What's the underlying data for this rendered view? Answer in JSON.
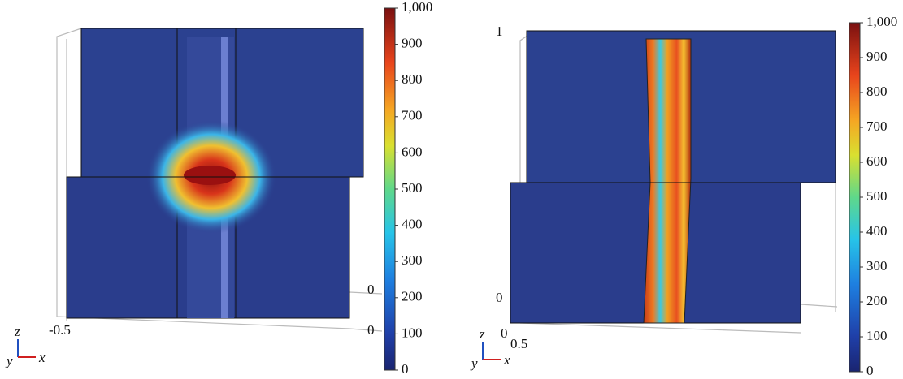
{
  "panels": [
    {
      "colorbar_ticks": [
        "0",
        "100",
        "200",
        "300",
        "400",
        "500",
        "600",
        "700",
        "800",
        "900",
        "1,000"
      ],
      "axis_labels": [
        "0",
        "0",
        "-0.5"
      ],
      "triad": {
        "z": "z",
        "y": "y",
        "x": "x"
      }
    },
    {
      "colorbar_ticks": [
        "0",
        "100",
        "200",
        "300",
        "400",
        "500",
        "600",
        "700",
        "800",
        "900",
        "1,000"
      ],
      "axis_labels": [
        "1",
        "0",
        "0",
        "0.5"
      ],
      "triad": {
        "z": "z",
        "y": "y",
        "x": "x"
      }
    }
  ]
}
